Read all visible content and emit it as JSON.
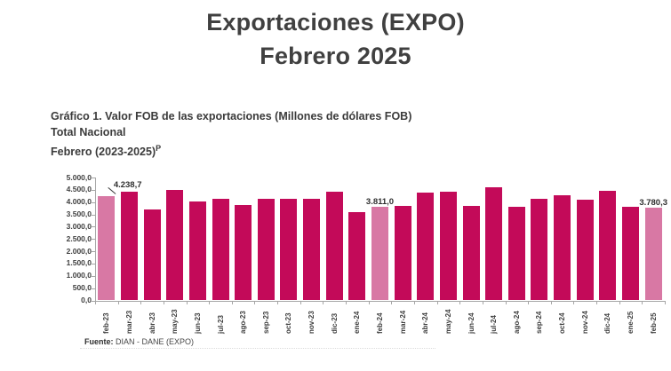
{
  "title": {
    "line1": "Exportaciones (EXPO)",
    "line2": "Febrero 2025"
  },
  "subtitle": {
    "line1": "Gráfico 1. Valor FOB de las exportaciones (Millones de dólares FOB)",
    "line2": "Total Nacional",
    "line3_base": "Febrero (2023-2025)",
    "line3_sup": "P"
  },
  "source": {
    "label": "Fuente:",
    "text": " DIAN - DANE (EXPO)"
  },
  "colors": {
    "bar": "#c30a59",
    "bar_highlight": "#d878a4",
    "title_text": "#404040",
    "axis_text": "#3f3f3f",
    "axis_line": "#a6a6a6",
    "annotation_text": "#2e2e2e"
  },
  "chart_data": {
    "type": "bar",
    "title": "Gráfico 1. Valor FOB de las exportaciones (Millones de dólares FOB) — Total Nacional — Febrero (2023-2025)P",
    "xlabel": "",
    "ylabel": "Millones de dólares FOB",
    "ylim": [
      0,
      5000
    ],
    "grid": false,
    "legend": "none",
    "y_ticks": [
      "5.000,0",
      "4.500,0",
      "4.000,0",
      "3.500,0",
      "3.000,0",
      "2.500,0",
      "2.000,0",
      "1.500,0",
      "1.000,0",
      "500,0",
      "0,0"
    ],
    "categories": [
      "feb-23",
      "mar-23",
      "abr-23",
      "may-23",
      "jun-23",
      "jul-23",
      "ago-23",
      "sep-23",
      "oct-23",
      "nov-23",
      "dic-23",
      "ene-24",
      "feb-24",
      "mar-24",
      "abr-24",
      "may-24",
      "jun-24",
      "jul-24",
      "ago-24",
      "sep-24",
      "oct-24",
      "nov-24",
      "dic-24",
      "ene-25",
      "feb-25"
    ],
    "values": [
      4238.7,
      4430,
      3700,
      4480,
      4010,
      4140,
      3890,
      4140,
      4130,
      4150,
      4410,
      3580,
      3811.0,
      3860,
      4390,
      4430,
      3830,
      4620,
      3820,
      4120,
      4270,
      4080,
      4460,
      3820,
      3780.3
    ],
    "highlighted_indices": [
      0,
      12,
      24
    ],
    "data_labels": [
      {
        "index": 0,
        "text": "4.238,7"
      },
      {
        "index": 12,
        "text": "3.811,0"
      },
      {
        "index": 24,
        "text": "3.780,3"
      }
    ]
  }
}
